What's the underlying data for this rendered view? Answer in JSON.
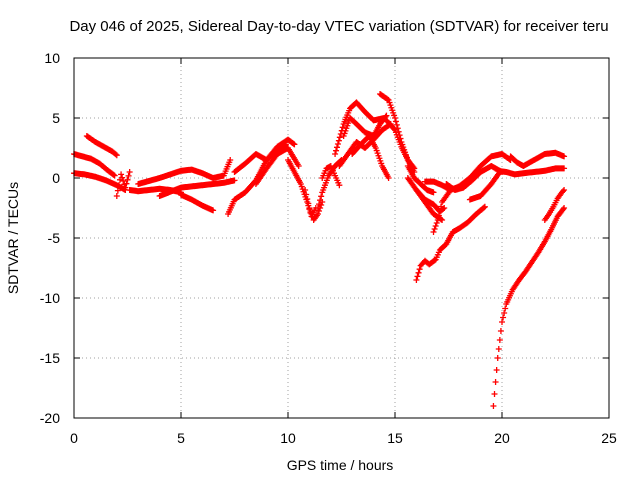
{
  "chart_data": {
    "type": "scatter",
    "title": "Day 046 of 2025, Sidereal Day-to-day VTEC variation (SDTVAR) for receiver teru",
    "xlabel": "GPS time / hours",
    "ylabel": "SDTVAR / TECUs",
    "xlim": [
      0,
      25
    ],
    "ylim": [
      -20,
      10
    ],
    "xticks": [
      0,
      5,
      10,
      15,
      20,
      25
    ],
    "yticks": [
      -20,
      -15,
      -10,
      -5,
      0,
      5,
      10
    ],
    "xtick_labels": [
      "0",
      "5",
      "10",
      "15",
      "20",
      "25"
    ],
    "ytick_labels": [
      "-20",
      "-15",
      "-10",
      "-5",
      "0",
      "5",
      "10"
    ],
    "grid": true,
    "marker": "+",
    "color": "#ff0000",
    "series": [
      {
        "name": "s1",
        "x": [
          0,
          0.4,
          0.8,
          1.2,
          1.6,
          1.9
        ],
        "y": [
          2.0,
          1.8,
          1.6,
          1.2,
          0.6,
          0.2
        ]
      },
      {
        "name": "s2",
        "x": [
          0.6,
          1.0,
          1.4,
          1.8,
          2.0
        ],
        "y": [
          3.5,
          3.0,
          2.6,
          2.2,
          1.9
        ]
      },
      {
        "name": "s3",
        "x": [
          0,
          0.5,
          1.0,
          1.5,
          2.0,
          2.4
        ],
        "y": [
          0.4,
          0.3,
          0.1,
          -0.2,
          -0.6,
          -1.0
        ]
      },
      {
        "name": "s4",
        "x": [
          2.0,
          2.2,
          2.4,
          2.6
        ],
        "y": [
          -1.5,
          0.3,
          -0.8,
          0.5
        ]
      },
      {
        "name": "s5",
        "x": [
          2.6,
          3.0,
          3.5,
          4.0,
          4.5,
          5.0
        ],
        "y": [
          -1.0,
          -1.1,
          -1.0,
          -0.9,
          -1.0,
          -1.2
        ]
      },
      {
        "name": "s6",
        "x": [
          5.0,
          5.5,
          6.0,
          6.5
        ],
        "y": [
          -1.4,
          -1.8,
          -2.3,
          -2.7
        ]
      },
      {
        "name": "s7",
        "x": [
          3.0,
          4.0,
          5.0,
          5.5,
          6.0,
          6.5,
          7.0,
          7.3
        ],
        "y": [
          -0.5,
          0.0,
          0.6,
          0.7,
          0.4,
          0.0,
          0.2,
          1.5
        ]
      },
      {
        "name": "s8",
        "x": [
          4.0,
          5.0,
          6.0,
          7.0,
          7.5
        ],
        "y": [
          -1.5,
          -0.8,
          -0.6,
          -0.4,
          -0.2
        ]
      },
      {
        "name": "s9",
        "x": [
          7.2,
          7.5,
          8.0,
          8.5,
          9.0,
          9.5,
          9.9
        ],
        "y": [
          -3.0,
          -1.8,
          -1.2,
          -0.2,
          1.5,
          2.3,
          2.8
        ]
      },
      {
        "name": "s10",
        "x": [
          7.5,
          8.0,
          8.5,
          9.0,
          9.5,
          10.0,
          10.3
        ],
        "y": [
          0.5,
          1.2,
          2.0,
          1.5,
          2.6,
          3.2,
          2.8
        ]
      },
      {
        "name": "s11",
        "x": [
          8.5,
          9.0,
          9.5,
          10.0,
          10.5
        ],
        "y": [
          -0.5,
          0.8,
          2.0,
          2.5,
          1.0
        ]
      },
      {
        "name": "s12",
        "x": [
          10.0,
          10.3,
          10.6,
          10.9,
          11.1,
          11.3
        ],
        "y": [
          1.5,
          0.5,
          -0.5,
          -2.0,
          -3.2,
          -2.5
        ]
      },
      {
        "name": "s13",
        "x": [
          10.8,
          11.0,
          11.2,
          11.4,
          11.6
        ],
        "y": [
          -1.0,
          -2.5,
          -3.5,
          -3.0,
          -2.0
        ]
      },
      {
        "name": "s14",
        "x": [
          11.4,
          11.6,
          11.9,
          12.2,
          12.5
        ],
        "y": [
          -2.5,
          -1.2,
          0.2,
          1.0,
          1.5
        ]
      },
      {
        "name": "s15",
        "x": [
          11.6,
          11.8,
          12.0,
          12.2,
          12.4
        ],
        "y": [
          0.0,
          0.8,
          1.0,
          0.2,
          -0.6
        ]
      },
      {
        "name": "s16",
        "x": [
          12.2,
          12.6,
          12.9,
          13.2,
          13.6,
          14.0,
          14.5
        ],
        "y": [
          2.0,
          4.5,
          5.8,
          6.3,
          5.5,
          4.8,
          5.0
        ]
      },
      {
        "name": "s17",
        "x": [
          12.6,
          12.9,
          13.2,
          13.6,
          14.0,
          14.3,
          14.6
        ],
        "y": [
          3.5,
          5.0,
          4.5,
          3.8,
          3.5,
          4.5,
          5.2
        ]
      },
      {
        "name": "s18",
        "x": [
          12.4,
          12.8,
          13.2,
          13.6,
          14.0,
          14.4,
          14.8
        ],
        "y": [
          1.0,
          2.0,
          3.0,
          2.5,
          3.2,
          4.0,
          4.5
        ]
      },
      {
        "name": "s19",
        "x": [
          13.0,
          13.4,
          13.8,
          14.1,
          14.4,
          14.7
        ],
        "y": [
          2.0,
          2.8,
          3.5,
          2.5,
          1.0,
          0.0
        ]
      },
      {
        "name": "s20",
        "x": [
          14.3,
          14.7,
          15.0,
          15.3,
          15.6,
          15.9
        ],
        "y": [
          7.0,
          6.5,
          5.0,
          3.0,
          1.5,
          0.5
        ]
      },
      {
        "name": "s21",
        "x": [
          14.6,
          15.0,
          15.3,
          15.6,
          15.9
        ],
        "y": [
          4.8,
          4.0,
          2.6,
          1.5,
          0.8
        ]
      },
      {
        "name": "s22",
        "x": [
          15.6,
          15.9,
          16.2,
          16.5,
          16.8
        ],
        "y": [
          1.0,
          0.0,
          -0.5,
          -1.0,
          -1.2
        ]
      },
      {
        "name": "s23",
        "x": [
          15.6,
          16.0,
          16.4,
          16.8,
          17.1,
          17.3
        ],
        "y": [
          0.0,
          -1.0,
          -1.8,
          -2.2,
          -2.8,
          -2.5
        ]
      },
      {
        "name": "s24",
        "x": [
          16.0,
          16.4,
          16.8,
          17.2
        ],
        "y": [
          -1.0,
          -2.0,
          -3.0,
          -3.5
        ]
      },
      {
        "name": "s25",
        "x": [
          16.8,
          17.0,
          17.2,
          17.4,
          17.6
        ],
        "y": [
          -4.5,
          -3.5,
          -2.0,
          -1.5,
          -1.0
        ]
      },
      {
        "name": "s26",
        "x": [
          16.4,
          16.8,
          17.2,
          17.6,
          18.0,
          18.5,
          19.0,
          19.5,
          20.0,
          20.4
        ],
        "y": [
          -0.3,
          -0.3,
          -0.6,
          -1.0,
          -0.7,
          0.0,
          1.0,
          1.8,
          2.0,
          1.5
        ]
      },
      {
        "name": "s27",
        "x": [
          17.4,
          17.8,
          18.2,
          18.6,
          19.0,
          19.5,
          20.0
        ],
        "y": [
          -0.5,
          -1.0,
          -0.8,
          -0.2,
          0.5,
          1.0,
          0.5
        ]
      },
      {
        "name": "s28",
        "x": [
          16.0,
          16.2,
          16.4,
          16.6,
          16.9,
          17.1,
          17.4,
          17.7,
          18.0,
          18.4,
          18.8,
          19.2
        ],
        "y": [
          -8.5,
          -7.3,
          -6.9,
          -7.2,
          -6.8,
          -6.0,
          -5.5,
          -4.5,
          -4.2,
          -3.7,
          -3.0,
          -2.4
        ]
      },
      {
        "name": "s29",
        "x": [
          18.5,
          19.0,
          19.5,
          19.9
        ],
        "y": [
          -1.8,
          -1.5,
          -0.5,
          0.5
        ]
      },
      {
        "name": "s30",
        "x": [
          19.8,
          20.2,
          20.6,
          21.0,
          21.5,
          22.0,
          22.5,
          22.9
        ],
        "y": [
          0.6,
          0.5,
          0.3,
          0.4,
          0.5,
          0.6,
          0.8,
          0.8
        ]
      },
      {
        "name": "s31",
        "x": [
          20.4,
          20.7,
          21.0,
          21.5,
          22.0,
          22.5,
          22.9
        ],
        "y": [
          1.8,
          1.3,
          1.0,
          1.5,
          2.0,
          2.1,
          1.8
        ]
      },
      {
        "name": "s32",
        "x": [
          19.6,
          19.7,
          19.8,
          19.9,
          20.0,
          20.2,
          20.5,
          20.8,
          21.1,
          21.4,
          21.7,
          22.0,
          22.3,
          22.6,
          22.9
        ],
        "y": [
          -19.0,
          -17.0,
          -15.0,
          -13.5,
          -12.0,
          -10.5,
          -9.3,
          -8.5,
          -7.8,
          -7.0,
          -6.2,
          -5.3,
          -4.3,
          -3.2,
          -2.5
        ]
      },
      {
        "name": "s33",
        "x": [
          22.0,
          22.2,
          22.4,
          22.6,
          22.8,
          22.9
        ],
        "y": [
          -3.5,
          -3.0,
          -2.4,
          -1.7,
          -1.2,
          -1.0
        ]
      }
    ]
  }
}
